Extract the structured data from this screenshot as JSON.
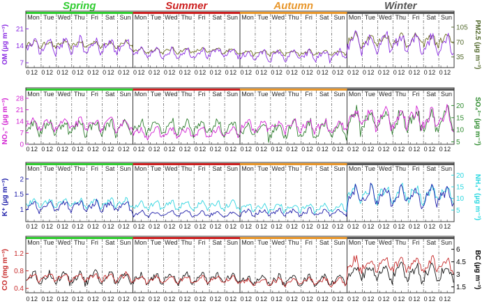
{
  "seasons": [
    {
      "name": "Spring",
      "color": "#2ecc2e"
    },
    {
      "name": "Summer",
      "color": "#cc1f1f"
    },
    {
      "name": "Autumn",
      "color": "#e8962a"
    },
    {
      "name": "Winter",
      "color": "#555555"
    }
  ],
  "days": [
    "Mon",
    "Tue",
    "Wed",
    "Thu",
    "Fri",
    "Sat",
    "Sun"
  ],
  "hour_ticks": [
    "0",
    "12"
  ],
  "chart_data": [
    {
      "type": "line",
      "panel": "OM / PM2.5",
      "left_axis": {
        "label": "OM (μg m⁻³)",
        "color": "#8a2be2",
        "ticks": [
          7,
          14,
          21
        ],
        "ylim": [
          5,
          24
        ]
      },
      "right_axis": {
        "label": "PM2.5 (μg m⁻³)",
        "color": "#556b2f",
        "ticks": [
          35,
          70,
          105
        ],
        "ylim": [
          10,
          118
        ]
      },
      "series": [
        {
          "name": "OM",
          "axis": "left",
          "color": "#8a2be2",
          "season_means": [
            14,
            11,
            10,
            15
          ],
          "amplitudes": [
            2.6,
            1.6,
            1.8,
            3.2
          ]
        },
        {
          "name": "PM2.5",
          "axis": "right",
          "color": "#6b6b1e",
          "season_means": [
            65,
            50,
            45,
            75
          ],
          "amplitudes": [
            7,
            5,
            5,
            12
          ]
        }
      ]
    },
    {
      "type": "line",
      "panel": "NO3- / SO4 2-",
      "left_axis": {
        "label": "NO₃⁻ (μg m⁻³)",
        "color": "#d11fd1",
        "ticks": [
          0,
          7,
          14,
          21,
          28
        ],
        "ylim": [
          0,
          28
        ]
      },
      "right_axis": {
        "label": "SO₄²⁻ (μg m⁻³)",
        "color": "#2e8b2e",
        "ticks": [
          5,
          10,
          15,
          20
        ],
        "ylim": [
          4,
          23
        ]
      },
      "series": [
        {
          "name": "NO3-",
          "axis": "left",
          "color": "#d11fd1",
          "season_means": [
            12,
            7,
            11,
            16
          ],
          "amplitudes": [
            3,
            2.5,
            3,
            5
          ]
        },
        {
          "name": "SO4 2-",
          "axis": "right",
          "color": "#2e7d2e",
          "season_means": [
            11,
            11,
            10,
            14
          ],
          "amplitudes": [
            2.5,
            2.5,
            3,
            4
          ]
        }
      ]
    },
    {
      "type": "line",
      "panel": "K+ / NH4+",
      "left_axis": {
        "label": "K⁺ (μg m⁻³)",
        "color": "#1a1aa8",
        "ticks": [
          1.0,
          1.5,
          2.0
        ],
        "ylim": [
          0.6,
          2.2
        ]
      },
      "right_axis": {
        "label": "NH₄⁺ (μg m⁻³)",
        "color": "#28d7e0",
        "ticks": [
          5,
          10,
          15,
          20
        ],
        "ylim": [
          0,
          21
        ]
      },
      "series": [
        {
          "name": "K+",
          "axis": "left",
          "color": "#1a1aa8",
          "season_means": [
            1.1,
            0.85,
            0.9,
            1.45
          ],
          "amplitudes": [
            0.15,
            0.08,
            0.1,
            0.25
          ]
        },
        {
          "name": "NH4+",
          "axis": "right",
          "color": "#30d5e0",
          "season_means": [
            8,
            7,
            6,
            12
          ],
          "amplitudes": [
            1.5,
            1.5,
            1.5,
            3
          ]
        }
      ]
    },
    {
      "type": "line",
      "panel": "CO / BC",
      "left_axis": {
        "label": "CO (mg m⁻³)",
        "color": "#c62828",
        "ticks": [
          0.4,
          0.8,
          1.2
        ],
        "ylim": [
          0.3,
          1.35
        ]
      },
      "right_axis": {
        "label": "BC (μg m⁻³)",
        "color": "#000000",
        "ticks": [
          1.5,
          3.0,
          4.5,
          6.0
        ],
        "ylim": [
          0.8,
          6.3
        ]
      },
      "series": [
        {
          "name": "CO",
          "axis": "left",
          "color": "#c62828",
          "season_means": [
            0.65,
            0.6,
            0.55,
            0.95
          ],
          "amplitudes": [
            0.08,
            0.06,
            0.07,
            0.14
          ]
        },
        {
          "name": "BC",
          "axis": "right",
          "color": "#111111",
          "season_means": [
            2.6,
            2.5,
            2.3,
            3.2
          ],
          "amplitudes": [
            0.6,
            0.5,
            0.5,
            0.8
          ]
        }
      ]
    }
  ]
}
